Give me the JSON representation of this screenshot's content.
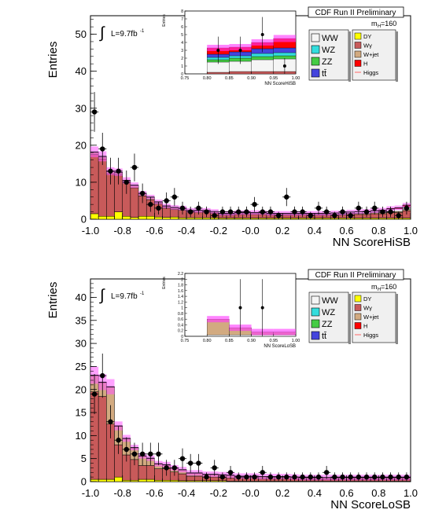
{
  "panels": [
    {
      "header": "CDF Run II Preliminary",
      "mass_label": "m",
      "mass_sub": "H",
      "mass_value": "=160",
      "lumi": "L=9.7fb",
      "lumi_exp": "-1",
      "legend_left": [
        {
          "label": "WW",
          "color": "#f5f5f5"
        },
        {
          "label": "WZ",
          "color": "#33dddd"
        },
        {
          "label": "ZZ",
          "color": "#44cc44"
        },
        {
          "label": "tt̄",
          "color": "#4444dd"
        }
      ],
      "legend_right": [
        {
          "label": "DY",
          "color": "#ffff00"
        },
        {
          "label": "Wγ",
          "color": "#c85a5a"
        },
        {
          "label": "W+jet",
          "color": "#d2aa80"
        },
        {
          "label": "H",
          "color": "#ff0000"
        },
        {
          "label": "Higgs",
          "color": "#ff6666"
        }
      ]
    },
    {
      "header": "CDF Run II Preliminary",
      "mass_label": "m",
      "mass_sub": "H",
      "mass_value": "=160",
      "lumi": "L=9.7fb",
      "lumi_exp": "-1",
      "legend_left": [
        {
          "label": "WW",
          "color": "#f5f5f5"
        },
        {
          "label": "WZ",
          "color": "#33dddd"
        },
        {
          "label": "ZZ",
          "color": "#44cc44"
        },
        {
          "label": "tt̄",
          "color": "#4444dd"
        }
      ],
      "legend_right": [
        {
          "label": "DY",
          "color": "#ffff00"
        },
        {
          "label": "Wγ",
          "color": "#c85a5a"
        },
        {
          "label": "W+jet",
          "color": "#d2aa80"
        },
        {
          "label": "H",
          "color": "#ff0000"
        },
        {
          "label": "Higgs",
          "color": "#ff6666"
        }
      ]
    }
  ],
  "chart_data": [
    {
      "type": "bar",
      "ylabel": "Entries",
      "xlabel": "NN ScoreHiSB",
      "xlim": [
        -1.0,
        1.0
      ],
      "ylim": [
        0,
        55
      ],
      "yticks": [
        0,
        10,
        20,
        30,
        40,
        50
      ],
      "xticks": [
        "-1.0",
        "-0.8",
        "-0.6",
        "-0.4",
        "-0.2",
        "-0.0",
        "0.2",
        "0.4",
        "0.6",
        "0.8",
        "1.0"
      ],
      "bin_edges": [
        -1.0,
        -0.95,
        -0.9,
        -0.85,
        -0.8,
        -0.75,
        -0.7,
        -0.65,
        -0.6,
        -0.55,
        -0.5,
        -0.45,
        -0.4,
        -0.35,
        -0.3,
        -0.25,
        -0.2,
        -0.15,
        -0.1,
        -0.05,
        0.0,
        0.05,
        0.1,
        0.15,
        0.2,
        0.25,
        0.3,
        0.35,
        0.4,
        0.45,
        0.5,
        0.55,
        0.6,
        0.65,
        0.7,
        0.75,
        0.8,
        0.85,
        0.9,
        0.95,
        1.0
      ],
      "series": [
        {
          "name": "DY",
          "color": "#ffff00",
          "values": [
            1.5,
            0.8,
            0.8,
            2.0,
            0.8,
            0.5,
            0.8,
            0.8,
            0.6,
            0.5,
            0.6,
            0.4,
            0.4,
            0.4,
            0.4,
            0.4,
            0.3,
            0.3,
            0.3,
            0.3,
            0.3,
            0.3,
            0.3,
            0.3,
            0.3,
            0.3,
            0.3,
            0.3,
            0.3,
            0.3,
            0.3,
            0.3,
            0.3,
            0.3,
            0.3,
            0.3,
            0.3,
            0.3,
            0.3,
            0.3
          ]
        },
        {
          "name": "Wγ",
          "color": "#c85a5a",
          "values": [
            16.0,
            15.5,
            11.5,
            10.0,
            9.0,
            8.0,
            5.5,
            4.5,
            3.5,
            2.5,
            2.0,
            2.0,
            1.5,
            1.5,
            1.5,
            1.2,
            0.8,
            0.8,
            1.0,
            1.0,
            1.0,
            1.0,
            0.8,
            0.8,
            0.8,
            0.8,
            0.8,
            0.8,
            0.8,
            0.8,
            0.8,
            0.8,
            1.0,
            1.0,
            1.0,
            1.2,
            1.2,
            1.5,
            1.5,
            2.0
          ]
        },
        {
          "name": "W+jet",
          "color": "#d2aa80",
          "values": [
            0.5,
            0.5,
            0.5,
            0.5,
            0.5,
            0.5,
            0.5,
            0.5,
            0.4,
            0.4,
            0.4,
            0.4,
            0.3,
            0.3,
            0.3,
            0.3,
            0.3,
            0.3,
            0.3,
            0.3,
            0.3,
            0.3,
            0.3,
            0.3,
            0.3,
            0.3,
            0.3,
            0.3,
            0.3,
            0.3,
            0.3,
            0.3,
            0.3,
            0.3,
            0.3,
            0.3,
            0.3,
            0.3,
            0.3,
            0.3
          ]
        },
        {
          "name": "WW",
          "color": "#f5f5f5",
          "values": [
            0.2,
            0.2,
            0.2,
            0.2,
            0.2,
            0.2,
            0.2,
            0.2,
            0.2,
            0.2,
            0.2,
            0.2,
            0.2,
            0.2,
            0.2,
            0.2,
            0.2,
            0.2,
            0.2,
            0.2,
            0.2,
            0.2,
            0.2,
            0.2,
            0.2,
            0.2,
            0.2,
            0.2,
            0.2,
            0.2,
            0.3,
            0.3,
            0.3,
            0.4,
            0.4,
            0.4,
            0.5,
            0.6,
            0.7,
            0.8
          ]
        },
        {
          "name": "H",
          "color": "#ff0000",
          "values": [
            0,
            0,
            0,
            0,
            0,
            0,
            0,
            0,
            0,
            0,
            0,
            0,
            0,
            0,
            0,
            0,
            0,
            0,
            0,
            0,
            0,
            0,
            0,
            0,
            0,
            0,
            0,
            0,
            0,
            0,
            0,
            0,
            0.05,
            0.05,
            0.1,
            0.1,
            0.15,
            0.2,
            0.3,
            0.4
          ]
        }
      ],
      "data": {
        "x": [
          -0.975,
          -0.925,
          -0.875,
          -0.825,
          -0.775,
          -0.725,
          -0.675,
          -0.625,
          -0.575,
          -0.525,
          -0.475,
          -0.425,
          -0.375,
          -0.325,
          -0.275,
          -0.225,
          -0.175,
          -0.125,
          -0.075,
          -0.025,
          0.025,
          0.075,
          0.125,
          0.175,
          0.225,
          0.275,
          0.325,
          0.375,
          0.425,
          0.475,
          0.525,
          0.575,
          0.625,
          0.675,
          0.725,
          0.775,
          0.825,
          0.875,
          0.925,
          0.975
        ],
        "y": [
          29,
          19,
          13,
          13,
          10,
          14,
          7,
          4,
          3,
          5,
          6,
          3,
          2,
          3,
          2,
          1,
          2,
          2,
          2,
          2,
          4,
          2,
          2,
          1,
          6,
          2,
          2,
          1,
          3,
          2,
          1,
          2,
          1,
          3,
          2,
          3,
          2,
          2,
          1,
          3
        ]
      },
      "inset": {
        "xlabel": "NN ScoreHiSB",
        "ylabel": "Entries",
        "xlim": [
          0.75,
          1.0
        ],
        "ylim": [
          0,
          8
        ],
        "yticks": [
          0,
          1,
          2,
          3,
          4,
          5,
          6,
          7,
          8
        ],
        "xticks": [
          "0.75",
          "0.80",
          "0.85",
          "0.90",
          "0.95",
          "1.00"
        ],
        "bin_edges": [
          0.75,
          0.8,
          0.85,
          0.9,
          0.95,
          1.0
        ],
        "series": [
          {
            "name": "Wγ",
            "color": "#c85a5a",
            "values": [
              0,
              0.2,
              0.3,
              0.3,
              0.3
            ]
          },
          {
            "name": "WW",
            "color": "#f5f5f5",
            "values": [
              0,
              1.3,
              1.3,
              1.5,
              1.6
            ]
          },
          {
            "name": "ZZ",
            "color": "#44cc44",
            "values": [
              0,
              0.3,
              0.4,
              0.4,
              0.4
            ]
          },
          {
            "name": "WZ",
            "color": "#33dddd",
            "values": [
              0,
              0.3,
              0.3,
              0.4,
              0.4
            ]
          },
          {
            "name": "tt̄",
            "color": "#4444dd",
            "values": [
              0,
              0.4,
              0.5,
              0.6,
              0.6
            ]
          },
          {
            "name": "H",
            "color": "#ff0000",
            "values": [
              0,
              0.8,
              0.6,
              0.8,
              1.2
            ]
          }
        ],
        "data": {
          "x": [
            0.825,
            0.875,
            0.925,
            0.975
          ],
          "y": [
            3,
            3,
            5,
            1
          ]
        }
      }
    },
    {
      "type": "bar",
      "ylabel": "Entries",
      "xlabel": "NN ScoreLoSB",
      "xlim": [
        -1.0,
        1.0
      ],
      "ylim": [
        0,
        44
      ],
      "yticks": [
        0,
        5,
        10,
        15,
        20,
        25,
        30,
        35,
        40
      ],
      "xticks": [
        "-1.0",
        "-0.8",
        "-0.6",
        "-0.4",
        "-0.2",
        "-0.0",
        "0.2",
        "0.4",
        "0.6",
        "0.8",
        "1.0"
      ],
      "bin_edges": [
        -1.0,
        -0.95,
        -0.9,
        -0.85,
        -0.8,
        -0.75,
        -0.7,
        -0.65,
        -0.6,
        -0.55,
        -0.5,
        -0.45,
        -0.4,
        -0.35,
        -0.3,
        -0.25,
        -0.2,
        -0.15,
        -0.1,
        -0.05,
        0.0,
        0.05,
        0.1,
        0.15,
        0.2,
        0.25,
        0.3,
        0.35,
        0.4,
        0.45,
        0.5,
        0.55,
        0.6,
        0.65,
        0.7,
        0.75,
        0.8,
        0.85,
        0.9,
        0.95,
        1.0
      ],
      "series": [
        {
          "name": "DY",
          "color": "#ffff00",
          "values": [
            0.5,
            0.5,
            0.5,
            1.0,
            0.3,
            0.3,
            0.5,
            0.5,
            0.3,
            0.3,
            0.3,
            0.2,
            0.2,
            0.2,
            0.2,
            0.2,
            0.2,
            0.1,
            0.1,
            0.1,
            0.1,
            0.1,
            0.1,
            0.1,
            0.1,
            0.1,
            0.1,
            0.1,
            0.1,
            0.1,
            0.1,
            0.1,
            0.1,
            0.1,
            0.1,
            0.1,
            0.1,
            0.1,
            0.1,
            0.1
          ]
        },
        {
          "name": "Wγ",
          "color": "#c85a5a",
          "values": [
            19.0,
            18.0,
            12.0,
            7.0,
            5.5,
            4.5,
            3.0,
            3.0,
            2.5,
            2.5,
            1.8,
            1.5,
            1.0,
            1.0,
            0.8,
            0.8,
            0.7,
            0.7,
            0.6,
            0.6,
            0.6,
            0.5,
            0.5,
            0.5,
            0.5,
            0.5,
            0.4,
            0.4,
            0.4,
            0.4,
            0.4,
            0.4,
            0.4,
            0.4,
            0.4,
            0.4,
            0.4,
            0.4,
            0.4,
            0.4
          ]
        },
        {
          "name": "W+jet",
          "color": "#d2aa80",
          "values": [
            3.5,
            3.0,
            8.0,
            4.0,
            3.5,
            2.5,
            2.0,
            1.5,
            1.0,
            0.8,
            0.8,
            0.8,
            0.6,
            0.6,
            0.5,
            0.5,
            0.5,
            0.5,
            0.4,
            0.4,
            0.4,
            0.4,
            0.4,
            0.4,
            0.4,
            0.3,
            0.3,
            0.3,
            0.3,
            0.3,
            0.3,
            0.3,
            0.3,
            0.3,
            0.3,
            0.3,
            0.3,
            0.3,
            0.3,
            0.3
          ]
        },
        {
          "name": "WW",
          "color": "#f5f5f5",
          "values": [
            0.1,
            0.1,
            0.1,
            0.1,
            0.1,
            0.1,
            0.1,
            0.1,
            0.1,
            0.1,
            0.1,
            0.1,
            0.1,
            0.1,
            0.1,
            0.1,
            0.1,
            0.1,
            0.1,
            0.1,
            0.1,
            0.1,
            0.1,
            0.1,
            0.1,
            0.1,
            0.1,
            0.1,
            0.1,
            0.1,
            0.1,
            0.1,
            0.1,
            0.1,
            0.1,
            0.1,
            0.1,
            0.1,
            0.1,
            0.1
          ]
        }
      ],
      "data": {
        "x": [
          -0.975,
          -0.925,
          -0.875,
          -0.825,
          -0.775,
          -0.725,
          -0.675,
          -0.625,
          -0.575,
          -0.525,
          -0.475,
          -0.425,
          -0.375,
          -0.325,
          -0.275,
          -0.225,
          -0.175,
          -0.125,
          -0.075,
          -0.025,
          0.025,
          0.075,
          0.125,
          0.175,
          0.225,
          0.275,
          0.325,
          0.375,
          0.425,
          0.475,
          0.525,
          0.575,
          0.625,
          0.675,
          0.725,
          0.775,
          0.825,
          0.875,
          0.925,
          0.975
        ],
        "y": [
          19,
          23,
          13,
          9,
          7,
          6,
          6,
          6,
          6,
          3,
          3,
          5,
          4,
          4,
          1,
          3,
          1,
          2,
          1,
          1,
          1,
          2,
          1,
          1,
          1,
          1,
          1,
          1,
          1,
          2,
          1,
          1,
          1,
          1,
          1,
          1,
          1,
          1,
          1,
          1
        ]
      },
      "inset": {
        "xlabel": "NN ScoreLoSB",
        "ylabel": "Entries",
        "xlim": [
          0.75,
          1.0
        ],
        "ylim": [
          0,
          2.2
        ],
        "yticks": [
          0,
          0.2,
          0.4,
          0.6,
          0.8,
          1,
          1.2,
          1.4,
          1.6,
          1.8,
          2,
          2.2
        ],
        "xticks": [
          "0.75",
          "0.80",
          "0.85",
          "0.90",
          "0.95",
          "1.00"
        ],
        "bin_edges": [
          0.75,
          0.8,
          0.85,
          0.9,
          0.95,
          1.0
        ],
        "series": [
          {
            "name": "WW",
            "color": "#f5f5f5",
            "values": [
              0,
              0.05,
              0.05,
              0.05,
              0.05
            ]
          },
          {
            "name": "W+jet",
            "color": "#d2aa80",
            "values": [
              0,
              0.55,
              0.25,
              0.1,
              0.1
            ]
          }
        ],
        "data": {
          "x": [
            0.875,
            0.925
          ],
          "y": [
            1,
            1
          ]
        }
      }
    }
  ]
}
